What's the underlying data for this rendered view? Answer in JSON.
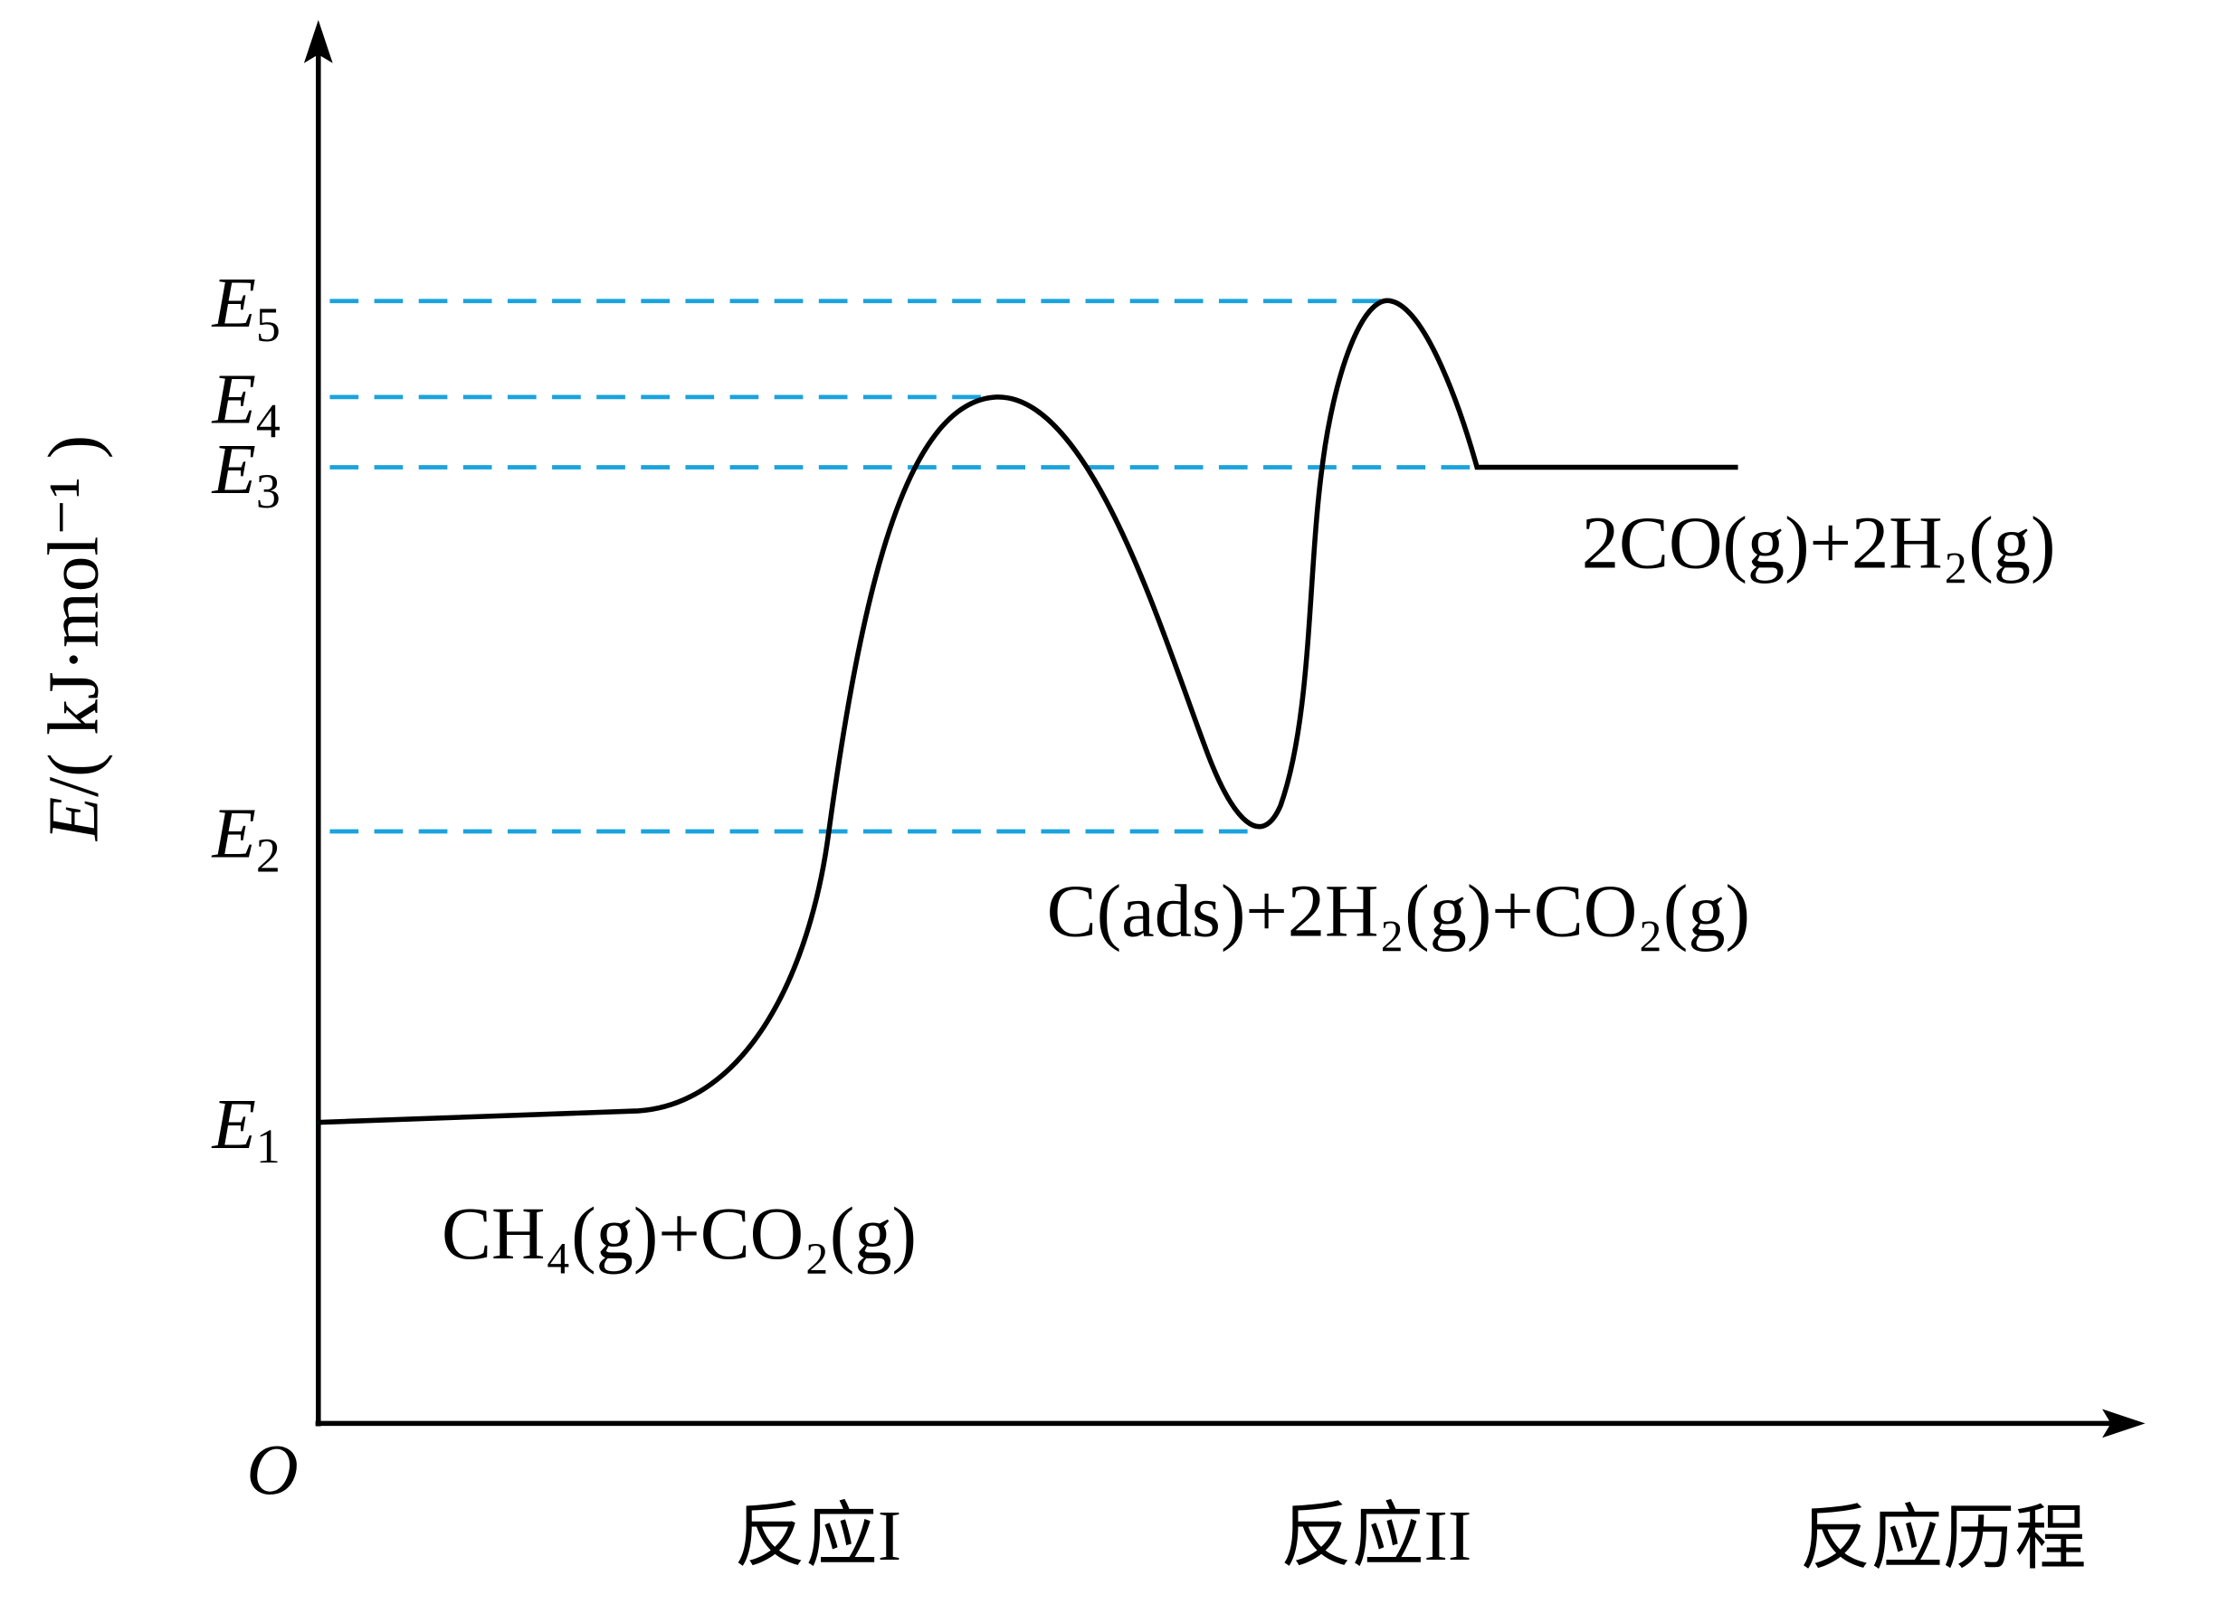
{
  "y_axis_label": {
    "symbol": "E",
    "unit": "/( kJ·mol⁻¹ )"
  },
  "origin": "O",
  "levels": [
    {
      "symbol": "E",
      "subscript": "1"
    },
    {
      "symbol": "E",
      "subscript": "2"
    },
    {
      "symbol": "E",
      "subscript": "3"
    },
    {
      "symbol": "E",
      "subscript": "4"
    },
    {
      "symbol": "E",
      "subscript": "5"
    }
  ],
  "species": [
    "CH₄(g)+CO₂(g)",
    "C(ads)+2H₂(g)+CO₂(g)",
    "2CO(g)+2H₂(g)"
  ],
  "x_labels": [
    "反应I",
    "反应II",
    "反应历程"
  ]
}
